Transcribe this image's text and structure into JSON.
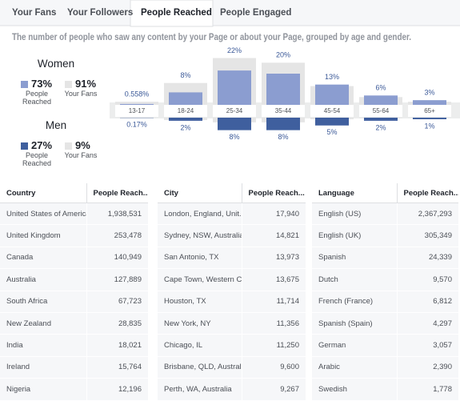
{
  "tabs": [
    {
      "label": "Your Fans"
    },
    {
      "label": "Your Followers"
    },
    {
      "label": "People Reached",
      "active": true
    },
    {
      "label": "People Engaged"
    }
  ],
  "description": "The number of people who saw any content by your Page or about your Page, grouped by age and gender.",
  "chart_data": {
    "type": "bar",
    "categories": [
      "13-17",
      "18-24",
      "25-34",
      "35-44",
      "45-54",
      "55-64",
      "65+"
    ],
    "groups": [
      {
        "name": "Women",
        "series": [
          {
            "name": "People Reached",
            "total": "73%",
            "color": "#8b9dd0",
            "values": [
              0.558,
              8,
              22,
              20,
              13,
              6,
              3
            ],
            "value_labels": [
              "0.558%",
              "8%",
              "22%",
              "20%",
              "13%",
              "6%",
              "3%"
            ]
          },
          {
            "name": "Your Fans",
            "total": "91%",
            "color": "#e5e5e5",
            "values": [
              2,
              14,
              30,
              27,
              12,
              5,
              2
            ]
          }
        ]
      },
      {
        "name": "Men",
        "series": [
          {
            "name": "People Reached",
            "total": "27%",
            "color": "#3f5f9e",
            "values": [
              0.17,
              2,
              8,
              8,
              5,
              2,
              1
            ],
            "value_labels": [
              "0.17%",
              "2%",
              "8%",
              "8%",
              "5%",
              "2%",
              "1%"
            ]
          },
          {
            "name": "Your Fans",
            "total": "9%",
            "color": "#e5e5e5",
            "values": [
              0.1,
              1.5,
              3,
              3,
              1,
              0.3,
              0.1
            ]
          }
        ]
      }
    ]
  },
  "tables": [
    {
      "headers": [
        "Country",
        "People Reach..."
      ],
      "rows": [
        [
          "United States of America",
          "1,938,531"
        ],
        [
          "United Kingdom",
          "253,478"
        ],
        [
          "Canada",
          "140,949"
        ],
        [
          "Australia",
          "127,889"
        ],
        [
          "South Africa",
          "67,723"
        ],
        [
          "New Zealand",
          "28,835"
        ],
        [
          "India",
          "18,021"
        ],
        [
          "Ireland",
          "15,764"
        ],
        [
          "Nigeria",
          "12,196"
        ]
      ]
    },
    {
      "headers": [
        "City",
        "People Reach..."
      ],
      "rows": [
        [
          "London, England, Unit...",
          "17,940"
        ],
        [
          "Sydney, NSW, Australia",
          "14,821"
        ],
        [
          "San Antonio, TX",
          "13,973"
        ],
        [
          "Cape Town, Western C...",
          "13,675"
        ],
        [
          "Houston, TX",
          "11,714"
        ],
        [
          "New York, NY",
          "11,356"
        ],
        [
          "Chicago, IL",
          "11,250"
        ],
        [
          "Brisbane, QLD, Australia",
          "9,600"
        ],
        [
          "Perth, WA, Australia",
          "9,267"
        ]
      ]
    },
    {
      "headers": [
        "Language",
        "People Reach..."
      ],
      "rows": [
        [
          "English (US)",
          "2,367,293"
        ],
        [
          "English (UK)",
          "305,349"
        ],
        [
          "Spanish",
          "24,339"
        ],
        [
          "Dutch",
          "9,570"
        ],
        [
          "French (France)",
          "6,812"
        ],
        [
          "Spanish (Spain)",
          "4,297"
        ],
        [
          "German",
          "3,057"
        ],
        [
          "Arabic",
          "2,390"
        ],
        [
          "Swedish",
          "1,778"
        ]
      ]
    }
  ]
}
